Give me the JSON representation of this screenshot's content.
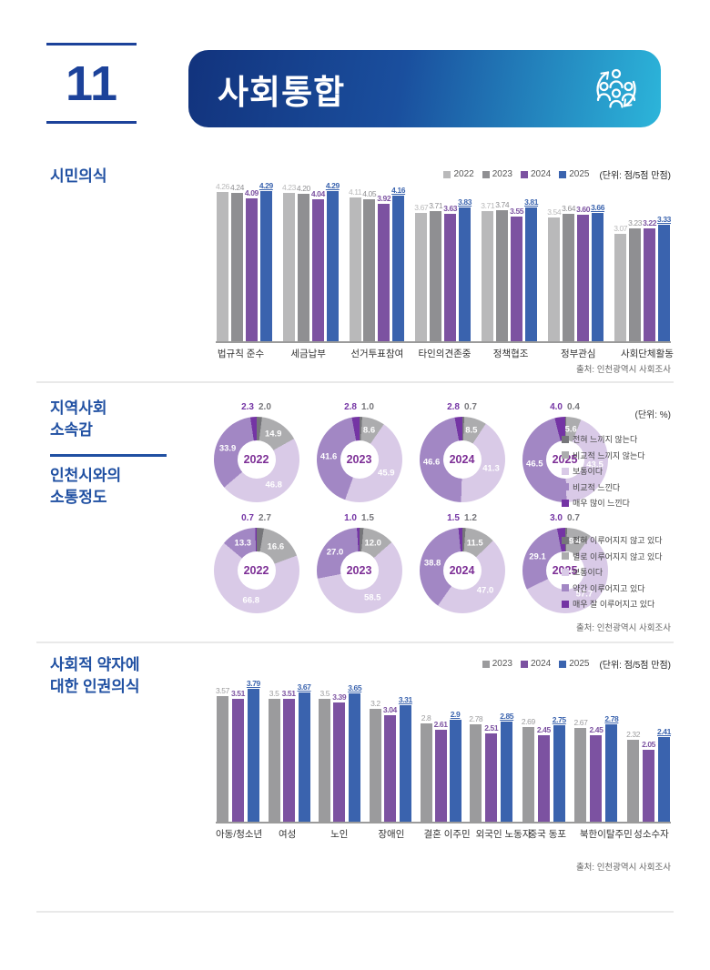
{
  "header": {
    "number": "11",
    "title": "사회통합",
    "icon": "people-cycle-icon"
  },
  "colors": {
    "accent_blue": "#1c429a",
    "title_blue": "#2050a2",
    "banner_gradient_start": "#12337d",
    "banner_gradient_end": "#2cb5da",
    "axis_gray": "#9b9b9b",
    "donut_year_purple": "#7d2f96"
  },
  "sections": {
    "s1": {
      "title": "시민의식",
      "source": "출처: 인천광역시 사회조사"
    },
    "s2": {
      "title1": "지역사회\n소속감",
      "title2": "인천시와의\n소통정도",
      "unit": "(단위: %)",
      "source": "출처: 인천광역시 사회조사"
    },
    "s3": {
      "title": "사회적 약자에\n대한 인권의식",
      "source": "출처: 인천광역시 사회조사"
    }
  },
  "chart_data": [
    {
      "id": "civic-consciousness",
      "type": "bar",
      "title": "시민의식",
      "unit_label": "(단위: 점/5점 만점)",
      "ylim": [
        0,
        5
      ],
      "legend_position": "top-right",
      "categories": [
        "법규칙 준수",
        "세금납부",
        "선거투표참여",
        "타인의견존중",
        "정책협조",
        "정부관심",
        "사회단체활동"
      ],
      "series": [
        {
          "name": "2022",
          "color": "#b9b9ba",
          "values": [
            4.26,
            4.23,
            4.11,
            3.67,
            3.71,
            3.54,
            3.07
          ],
          "labels": [
            "4.26",
            "4.23",
            "4.11",
            "3.67",
            "3.71",
            "3.54",
            "3.07"
          ]
        },
        {
          "name": "2023",
          "color": "#8f8f92",
          "values": [
            4.24,
            4.2,
            4.05,
            3.71,
            3.74,
            3.64,
            3.23
          ],
          "labels": [
            "4.24",
            "4.20",
            "4.05",
            "3.71",
            "3.74",
            "3.64",
            "3.23"
          ]
        },
        {
          "name": "2024",
          "color": "#7c52a1",
          "values": [
            4.09,
            4.04,
            3.92,
            3.63,
            3.55,
            3.6,
            3.22
          ],
          "labels": [
            "4.09",
            "4.04",
            "3.92",
            "3.63",
            "3.55",
            "3.60",
            "3.22"
          ]
        },
        {
          "name": "2025",
          "color": "#3a63ae",
          "values": [
            4.29,
            4.29,
            4.16,
            3.83,
            3.81,
            3.66,
            3.33
          ],
          "labels": [
            "4.29",
            "4.29",
            "4.16",
            "3.83",
            "3.81",
            "3.66",
            "3.33"
          ]
        }
      ]
    },
    {
      "id": "community-belonging",
      "type": "pie",
      "style": "donut",
      "title": "지역사회 소속감",
      "unit_label": "(단위: %)",
      "slice_colors": [
        "#76767a",
        "#acacae",
        "#d9cae7",
        "#a287c4",
        "#7434a4"
      ],
      "legend": [
        "전혀 느끼지 않는다",
        "비교적 느끼지 않는다",
        "보통이다",
        "비교적 느낀다",
        "매우 많이 느낀다"
      ],
      "donuts": [
        {
          "year": "2022",
          "values": [
            2.0,
            14.9,
            46.8,
            33.9,
            2.3
          ]
        },
        {
          "year": "2023",
          "values": [
            1.0,
            8.6,
            45.9,
            41.6,
            2.8
          ]
        },
        {
          "year": "2024",
          "values": [
            0.7,
            8.5,
            41.3,
            46.6,
            2.8
          ]
        },
        {
          "year": "2025",
          "values": [
            0.4,
            5.6,
            43.5,
            46.5,
            4.0
          ]
        }
      ]
    },
    {
      "id": "communication-with-incheon",
      "type": "pie",
      "style": "donut",
      "title": "인천시와의 소통정도",
      "unit_label": "(단위: %)",
      "slice_colors": [
        "#76767a",
        "#acacae",
        "#d9cae7",
        "#a287c4",
        "#7434a4"
      ],
      "legend": [
        "전혀 이루어지지 않고 있다",
        "별로 이루어지지 않고 있다",
        "보통이다",
        "약간 이루어지고 있다",
        "매우 잘 이루어지고 있다"
      ],
      "donuts": [
        {
          "year": "2022",
          "values": [
            2.7,
            16.6,
            66.8,
            13.3,
            0.7
          ]
        },
        {
          "year": "2023",
          "values": [
            1.5,
            12.0,
            58.5,
            27.0,
            1.0
          ]
        },
        {
          "year": "2024",
          "values": [
            1.2,
            11.5,
            47.0,
            38.8,
            1.5
          ]
        },
        {
          "year": "2025",
          "values": [
            0.7,
            9.4,
            57.7,
            29.1,
            3.0
          ]
        }
      ]
    },
    {
      "id": "human-rights-awareness",
      "type": "bar",
      "title": "사회적 약자에 대한 인권의식",
      "unit_label": "(단위: 점/5점 만점)",
      "ylim": [
        0,
        5
      ],
      "legend_position": "top-right",
      "categories": [
        "아동/청소년",
        "여성",
        "노인",
        "장애인",
        "결혼 이주민",
        "외국인 노동자",
        "중국 동포",
        "북한이탈주민",
        "성소수자"
      ],
      "series": [
        {
          "name": "2023",
          "color": "#9b9b9d",
          "values": [
            3.57,
            3.5,
            3.5,
            3.2,
            2.8,
            2.78,
            2.69,
            2.67,
            2.32
          ],
          "labels": [
            "3.57",
            "3.5",
            "3.5",
            "3.2",
            "2.8",
            "2.78",
            "2.69",
            "2.67",
            "2.32"
          ]
        },
        {
          "name": "2024",
          "color": "#7c52a1",
          "values": [
            3.51,
            3.51,
            3.39,
            3.04,
            2.61,
            2.51,
            2.45,
            2.45,
            2.05
          ],
          "labels": [
            "3.51",
            "3.51",
            "3.39",
            "3.04",
            "2.61",
            "2.51",
            "2.45",
            "2.45",
            "2.05"
          ]
        },
        {
          "name": "2025",
          "color": "#3a63ae",
          "values": [
            3.79,
            3.67,
            3.65,
            3.31,
            2.9,
            2.85,
            2.75,
            2.78,
            2.41
          ],
          "labels": [
            "3.79",
            "3.67",
            "3.65",
            "3.31",
            "2.9",
            "2.85",
            "2.75",
            "2.78",
            "2.41"
          ]
        }
      ]
    }
  ]
}
